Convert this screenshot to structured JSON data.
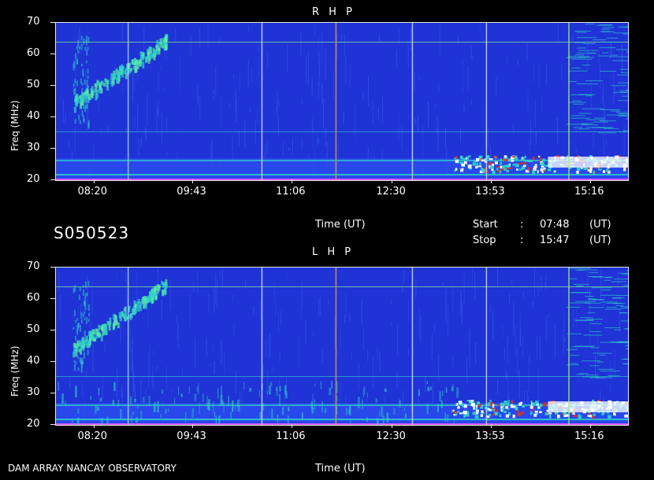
{
  "header": {
    "dataset_id": "S050523",
    "time_label": "Time (UT)",
    "start_label": "Start",
    "stop_label": "Stop",
    "colon": ":",
    "start_value": "07:48",
    "stop_value": "15:47",
    "unit": "(UT)"
  },
  "footer": {
    "observatory": "DAM ARRAY  NANCAY OBSERVATORY",
    "time_label": "Time (UT)"
  },
  "chart_data": [
    {
      "type": "heatmap",
      "title": "R H P",
      "ylabel": "Freq (MHz)",
      "xlabel": "Time (UT)",
      "yticks": [
        "20",
        "30",
        "40",
        "50",
        "60",
        "70"
      ],
      "xticks": [
        "08:20",
        "09:43",
        "11:06",
        "12:30",
        "13:53",
        "15:16"
      ],
      "ylim": [
        20,
        70
      ],
      "xlim": [
        "07:48",
        "15:47"
      ],
      "colors": {
        "background": "#1f33d6",
        "emission": "#2fd6c8",
        "strong": "#ffffff",
        "peak": "#e03020"
      }
    },
    {
      "type": "heatmap",
      "title": "L H P",
      "ylabel": "Freq (MHz)",
      "xlabel": "Time (UT)",
      "yticks": [
        "20",
        "30",
        "40",
        "50",
        "60",
        "70"
      ],
      "xticks": [
        "08:20",
        "09:43",
        "11:06",
        "12:30",
        "13:53",
        "15:16"
      ],
      "ylim": [
        20,
        70
      ],
      "xlim": [
        "07:48",
        "15:47"
      ],
      "colors": {
        "background": "#1f33d6",
        "emission": "#2fd6c8",
        "strong": "#ffffff",
        "peak": "#e03020"
      }
    }
  ]
}
